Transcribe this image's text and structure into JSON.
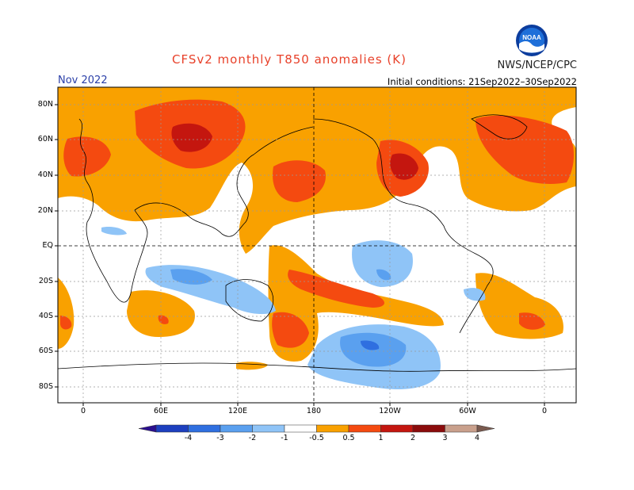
{
  "title": "CFSv2 monthly T850 anomalies (K)",
  "month_label": "Nov 2022",
  "initial_conditions": "Initial conditions: 21Sep2022–30Sep2022",
  "agency": "NWS/NCEP/CPC",
  "logo_text": "NOAA",
  "lat_ticks": [
    "80N",
    "60N",
    "40N",
    "20N",
    "EQ",
    "20S",
    "40S",
    "60S",
    "80S"
  ],
  "lon_ticks": [
    "0",
    "60E",
    "120E",
    "180",
    "120W",
    "60W",
    "0"
  ],
  "colorbar": {
    "labels": [
      "-4",
      "-3",
      "-2",
      "-1",
      "-0.5",
      "0.5",
      "1",
      "2",
      "3",
      "4"
    ],
    "colors": [
      "#2b0f8f",
      "#1d3fbf",
      "#2f6fe0",
      "#5aa0ef",
      "#8fc4f7",
      "#ffffff",
      "#f9a100",
      "#f44a10",
      "#c4160f",
      "#8b0c0c",
      "#c9a08c",
      "#7a5a4f"
    ]
  }
}
